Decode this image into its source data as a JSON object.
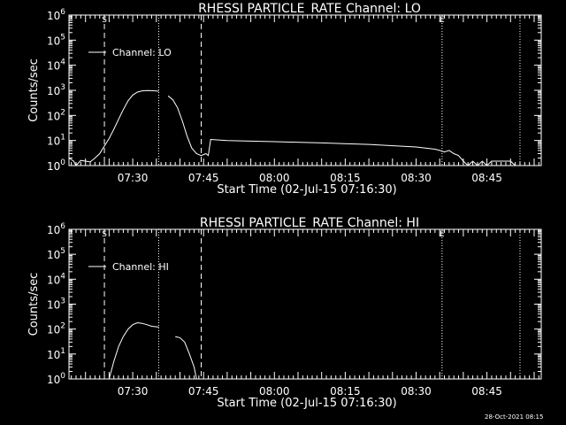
{
  "timestamp": "28-Oct-2021 08:15",
  "x_tick_labels": [
    "07:30",
    "07:45",
    "08:00",
    "08:15",
    "08:30",
    "08:45"
  ],
  "y_tick_labels": [
    {
      "base": "10",
      "exp": "0"
    },
    {
      "base": "10",
      "exp": "1"
    },
    {
      "base": "10",
      "exp": "2"
    },
    {
      "base": "10",
      "exp": "3"
    },
    {
      "base": "10",
      "exp": "4"
    },
    {
      "base": "10",
      "exp": "5"
    },
    {
      "base": "10",
      "exp": "6"
    }
  ],
  "chart_data": [
    {
      "type": "line",
      "title": "RHESSI PARTICLE_RATE Channel: LO",
      "xlabel": "Start Time (02-Jul-15 07:16:30)",
      "ylabel": "Counts/sec",
      "legend": "Channel: LO",
      "y_scale": "log",
      "xlim": [
        "07:16:30",
        "08:56:30"
      ],
      "ylim": [
        1,
        1000000
      ],
      "markers": {
        "S": "07:24:00",
        "E": "08:35:30"
      },
      "dashed_lines": [
        "07:24:00",
        "07:44:30"
      ],
      "dotted_lines": [
        "07:35:30",
        "08:35:30",
        "08:52:00"
      ],
      "segments": [
        [
          [
            "07:16:30",
            2
          ],
          [
            "07:17:30",
            1.5
          ],
          [
            "07:18:00",
            1
          ],
          [
            "07:19:00",
            1.6
          ],
          [
            "07:20:00",
            1.5
          ],
          [
            "07:21:00",
            1.4
          ],
          [
            "07:22:00",
            2
          ],
          [
            "07:23:00",
            3
          ],
          [
            "07:24:00",
            6
          ],
          [
            "07:25:00",
            12
          ],
          [
            "07:26:00",
            28
          ],
          [
            "07:27:00",
            70
          ],
          [
            "07:28:00",
            170
          ],
          [
            "07:29:00",
            380
          ],
          [
            "07:30:00",
            650
          ],
          [
            "07:31:00",
            850
          ],
          [
            "07:32:00",
            950
          ],
          [
            "07:33:00",
            980
          ],
          [
            "07:34:00",
            970
          ],
          [
            "07:35:30",
            920
          ]
        ],
        [
          [
            "07:37:30",
            600
          ],
          [
            "07:38:30",
            420
          ],
          [
            "07:39:30",
            200
          ],
          [
            "07:40:30",
            60
          ],
          [
            "07:41:30",
            15
          ],
          [
            "07:42:30",
            5
          ],
          [
            "07:43:30",
            3
          ],
          [
            "07:44:30",
            2.5
          ],
          [
            "07:45:30",
            3
          ],
          [
            "07:46:00",
            2.5
          ],
          [
            "07:46:30",
            11
          ],
          [
            "07:50:00",
            10
          ],
          [
            "08:00:00",
            9
          ],
          [
            "08:10:00",
            8
          ],
          [
            "08:20:00",
            7
          ],
          [
            "08:30:00",
            5.5
          ],
          [
            "08:34:00",
            4.5
          ],
          [
            "08:35:00",
            4
          ],
          [
            "08:36:00",
            3.5
          ],
          [
            "08:37:00",
            4
          ],
          [
            "08:38:00",
            3
          ],
          [
            "08:39:00",
            2.5
          ],
          [
            "08:40:00",
            1.5
          ],
          [
            "08:41:00",
            1
          ],
          [
            "08:42:00",
            1.5
          ],
          [
            "08:43:00",
            1
          ],
          [
            "08:44:00",
            1.5
          ],
          [
            "08:45:00",
            1
          ],
          [
            "08:46:00",
            1.5
          ],
          [
            "08:47:00",
            1.5
          ],
          [
            "08:50:00",
            1.5
          ],
          [
            "08:51:00",
            1
          ]
        ]
      ]
    },
    {
      "type": "line",
      "title": "RHESSI PARTICLE_RATE Channel: HI",
      "xlabel": "Start Time (02-Jul-15 07:16:30)",
      "ylabel": "Counts/sec",
      "legend": "Channel: HI",
      "y_scale": "log",
      "xlim": [
        "07:16:30",
        "08:56:30"
      ],
      "ylim": [
        1,
        1000000
      ],
      "markers": {
        "S": "07:24:00",
        "E": "08:35:30"
      },
      "dashed_lines": [
        "07:24:00",
        "07:44:30"
      ],
      "dotted_lines": [
        "07:35:30",
        "08:35:30",
        "08:52:00"
      ],
      "segments": [
        [
          [
            "07:25:00",
            1
          ],
          [
            "07:26:00",
            5
          ],
          [
            "07:27:00",
            20
          ],
          [
            "07:28:00",
            50
          ],
          [
            "07:29:00",
            100
          ],
          [
            "07:30:00",
            150
          ],
          [
            "07:31:00",
            180
          ],
          [
            "07:32:00",
            170
          ],
          [
            "07:33:00",
            150
          ],
          [
            "07:34:00",
            130
          ],
          [
            "07:35:30",
            120
          ]
        ],
        [
          [
            "07:39:00",
            50
          ],
          [
            "07:40:00",
            45
          ],
          [
            "07:41:00",
            30
          ],
          [
            "07:42:00",
            10
          ],
          [
            "07:43:00",
            3
          ],
          [
            "07:43:30",
            1
          ]
        ]
      ]
    }
  ]
}
